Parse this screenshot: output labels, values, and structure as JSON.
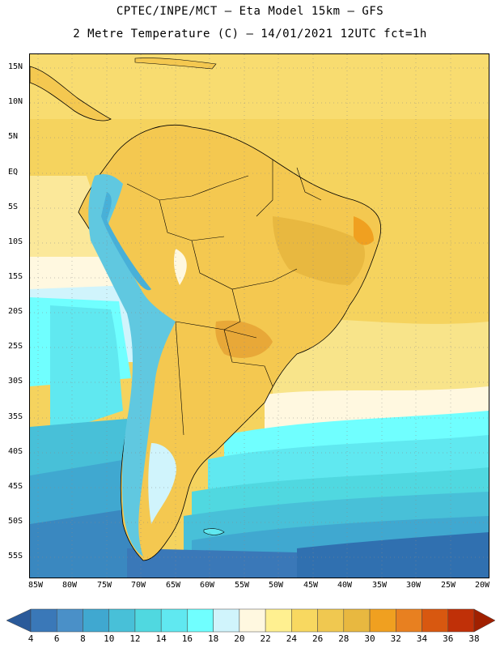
{
  "header": {
    "line1": "CPTEC/INPE/MCT –  Eta Model 15km – GFS",
    "line2": "2 Metre Temperature (C) – 14/01/2021 12UTC fct=1h"
  },
  "axes": {
    "lat_labels": [
      "15N",
      "10N",
      "5N",
      "EQ",
      "5S",
      "10S",
      "15S",
      "20S",
      "25S",
      "30S",
      "35S",
      "40S",
      "45S",
      "50S",
      "55S"
    ],
    "lon_labels": [
      "85W",
      "80W",
      "75W",
      "70W",
      "65W",
      "60W",
      "55W",
      "50W",
      "45W",
      "40W",
      "35W",
      "30W",
      "25W",
      "20W"
    ]
  },
  "colorbar": {
    "labels": [
      "4",
      "6",
      "8",
      "10",
      "12",
      "14",
      "16",
      "18",
      "20",
      "22",
      "24",
      "26",
      "28",
      "30",
      "32",
      "34",
      "36",
      "38"
    ],
    "colors": [
      "#2a5a9a",
      "#3a78b8",
      "#4a90c8",
      "#40a8d0",
      "#48c0d8",
      "#50d8e0",
      "#60e8f0",
      "#70ffff",
      "#d0f4fc",
      "#fff8e0",
      "#fff090",
      "#f8d860",
      "#f0c850",
      "#e8b840",
      "#f0a020",
      "#e88020",
      "#d85810",
      "#c03008",
      "#a02000"
    ]
  },
  "colors": {
    "warm_land": "#f4c850",
    "hot_land": "#e8a838",
    "ocean_warm": "#f8e080",
    "ocean_cool": "#50d8e0",
    "ocean_cold": "#3070b0",
    "andes_cold": "#60c8e0"
  }
}
